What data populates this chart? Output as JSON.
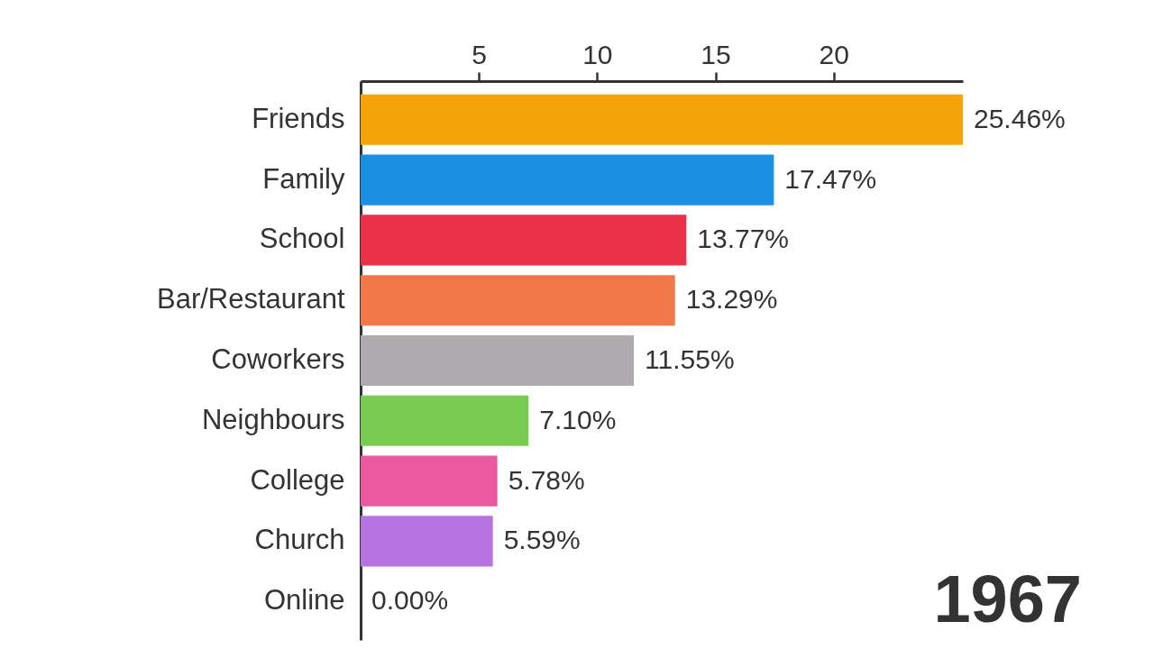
{
  "chart_data": {
    "type": "bar",
    "orientation": "horizontal",
    "categories": [
      "Friends",
      "Family",
      "School",
      "Bar/Restaurant",
      "Coworkers",
      "Neighbours",
      "College",
      "Church",
      "Online"
    ],
    "values": [
      25.46,
      17.47,
      13.77,
      13.29,
      11.55,
      7.1,
      5.78,
      5.59,
      0.0
    ],
    "value_labels": [
      "25.46%",
      "17.47%",
      "13.77%",
      "13.29%",
      "11.55%",
      "7.10%",
      "5.78%",
      "5.59%",
      "0.00%"
    ],
    "colors": [
      "#f5a50a",
      "#1a8fe3",
      "#ea3148",
      "#f2784a",
      "#aeaaae",
      "#78cc50",
      "#ea5aa0",
      "#b574e0",
      null
    ],
    "xlim": [
      0,
      25.46
    ],
    "xticks": [
      5,
      10,
      15,
      20
    ],
    "annotations": [
      "1967"
    ]
  }
}
